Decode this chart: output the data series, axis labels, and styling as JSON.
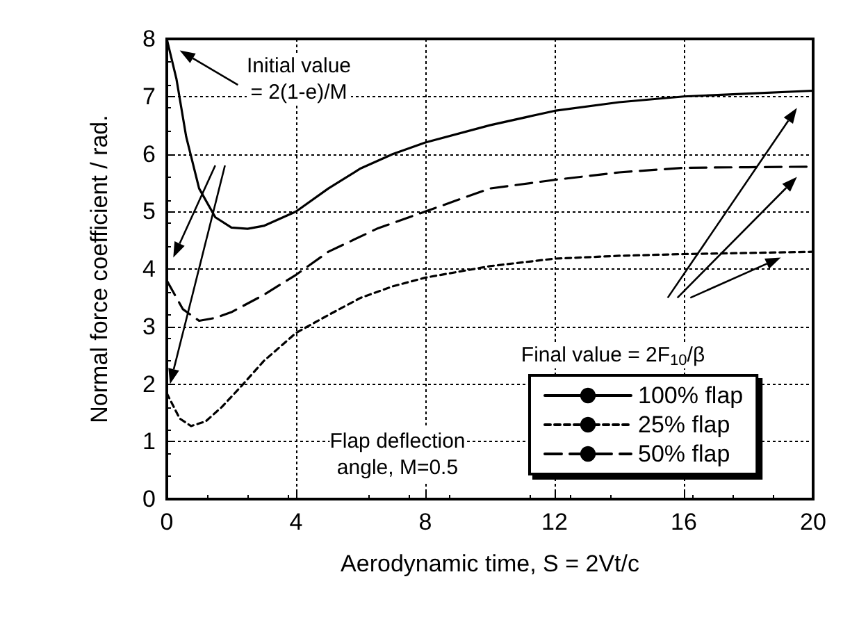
{
  "chart_data": {
    "type": "line",
    "xlabel": "Aerodynamic time, S = 2Vt/c",
    "ylabel": "Normal force coefficient / rad.",
    "xlim": [
      0,
      20
    ],
    "xticks": [
      0,
      4,
      8,
      12,
      16,
      20
    ],
    "ylim": [
      0,
      8
    ],
    "yticks": [
      0,
      1,
      2,
      3,
      4,
      5,
      6,
      7,
      8
    ],
    "grid": true,
    "legend": "bottom right",
    "marker": "none",
    "annotations": [
      "Initial value\n= 2(1-e)/M",
      "Final value = 2F$_{10}$/β",
      "Flap deflection\nangle, M=0.5"
    ],
    "series": [
      {
        "name": "100% flap",
        "color": "#000000",
        "line_style": "solid",
        "x": [
          0,
          0.3,
          0.6,
          1,
          1.5,
          2,
          2.5,
          3,
          4,
          5,
          6,
          7,
          8,
          10,
          12,
          14,
          16,
          18,
          20
        ],
        "values": [
          8,
          7.3,
          6.3,
          5.4,
          4.9,
          4.72,
          4.7,
          4.75,
          5.0,
          5.4,
          5.75,
          6.0,
          6.2,
          6.5,
          6.75,
          6.9,
          7.0,
          7.05,
          7.1
        ]
      },
      {
        "name": "25% flap",
        "color": "#000000",
        "line_style": "dotted",
        "x": [
          0,
          0.4,
          0.75,
          1.2,
          1.7,
          2.3,
          3,
          4,
          5,
          6,
          7,
          8,
          10,
          12,
          14,
          16,
          18,
          20
        ],
        "values": [
          1.84,
          1.4,
          1.27,
          1.35,
          1.6,
          1.96,
          2.4,
          2.89,
          3.2,
          3.5,
          3.7,
          3.85,
          4.05,
          4.18,
          4.23,
          4.26,
          4.28,
          4.3
        ]
      },
      {
        "name": "50% flap",
        "color": "#000000",
        "line_style": "dashed",
        "x": [
          0,
          0.5,
          1,
          1.5,
          2,
          3,
          4,
          5,
          6.5,
          8,
          10,
          12,
          14,
          16,
          18,
          20
        ],
        "values": [
          3.8,
          3.3,
          3.1,
          3.15,
          3.25,
          3.55,
          3.9,
          4.3,
          4.7,
          5.0,
          5.4,
          5.55,
          5.68,
          5.76,
          5.77,
          5.78
        ]
      }
    ]
  }
}
